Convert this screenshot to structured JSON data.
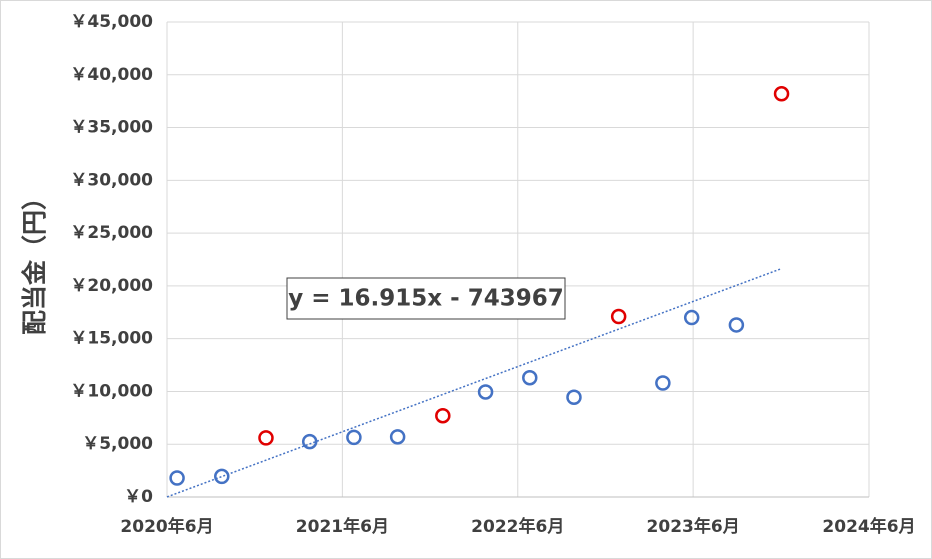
{
  "chart_data": {
    "type": "scatter",
    "y_label": "配当金（円）",
    "series": [
      {
        "color": "#4472c4",
        "x": [
          44004,
          44097,
          44280,
          44372,
          44463,
          44646,
          44738,
          44830,
          45015,
          45075,
          45168
        ],
        "values": [
          1800,
          1950,
          5250,
          5650,
          5700,
          9950,
          11300,
          9450,
          10800,
          17000,
          16300
        ]
      },
      {
        "color": "#e00000",
        "x": [
          44189,
          44557,
          44923,
          45262
        ],
        "values": [
          5600,
          7700,
          17100,
          38200
        ]
      }
    ],
    "trendline": {
      "slope": 16.915,
      "intercept": -743967,
      "label": "y = 16.915x - 743967",
      "color": "#4472c4"
    },
    "xlim": [
      43983,
      45444
    ],
    "xticks": [
      {
        "value": 43983,
        "label": "2020年6月"
      },
      {
        "value": 44348,
        "label": "2021年6月"
      },
      {
        "value": 44713,
        "label": "2022年6月"
      },
      {
        "value": 45078,
        "label": "2023年6月"
      },
      {
        "value": 45444,
        "label": "2024年6月"
      }
    ],
    "ylim": [
      0,
      45000
    ],
    "yticks": [
      {
        "value": 0,
        "label": "￥0"
      },
      {
        "value": 5000,
        "label": "￥5,000"
      },
      {
        "value": 10000,
        "label": "￥10,000"
      },
      {
        "value": 15000,
        "label": "￥15,000"
      },
      {
        "value": 20000,
        "label": "￥20,000"
      },
      {
        "value": 25000,
        "label": "￥25,000"
      },
      {
        "value": 30000,
        "label": "￥30,000"
      },
      {
        "value": 35000,
        "label": "￥35,000"
      },
      {
        "value": 40000,
        "label": "￥40,000"
      },
      {
        "value": 45000,
        "label": "￥45,000"
      }
    ],
    "grid": true
  }
}
